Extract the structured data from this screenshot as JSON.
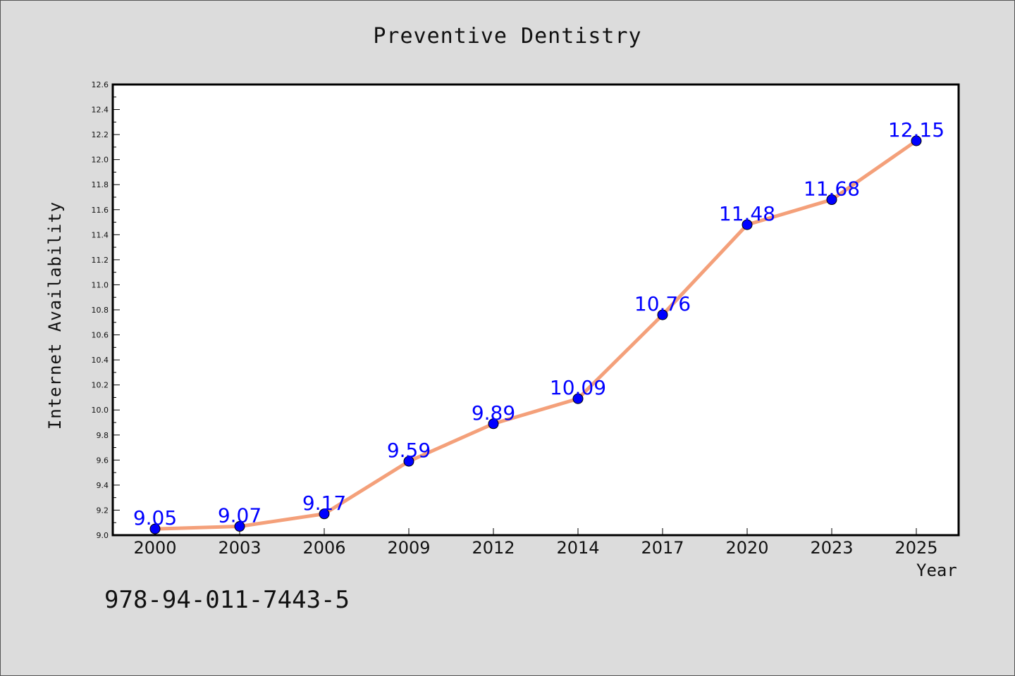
{
  "chart_data": {
    "type": "line",
    "title": "Preventive Dentistry",
    "xlabel": "Year",
    "ylabel": "Internet Availability",
    "categories": [
      "2000",
      "2003",
      "2006",
      "2009",
      "2012",
      "2014",
      "2017",
      "2020",
      "2023",
      "2025"
    ],
    "values": [
      9.05,
      9.07,
      9.17,
      9.59,
      9.89,
      10.09,
      10.76,
      11.48,
      11.68,
      12.15
    ],
    "data_labels": [
      "9.05",
      "9.07",
      "9.17",
      "9.59",
      "9.89",
      "10.09",
      "10.76",
      "11.48",
      "11.68",
      "12.15"
    ],
    "ylim": [
      9.0,
      12.6
    ],
    "y_ticks": [
      "9.0",
      "9.2",
      "9.4",
      "9.6",
      "9.8",
      "10.0",
      "10.2",
      "10.4",
      "10.6",
      "10.8",
      "11.0",
      "11.2",
      "11.4",
      "11.6",
      "11.8",
      "12.0",
      "12.2",
      "12.4",
      "12.6"
    ],
    "grid": false,
    "line_color": "#f4a07a",
    "marker_color": "#0000ff",
    "label_color": "#0000ff",
    "background": "#dcdcdc",
    "plot_background": "#ffffff"
  },
  "footer": {
    "isbn": "978-94-011-7443-5"
  }
}
